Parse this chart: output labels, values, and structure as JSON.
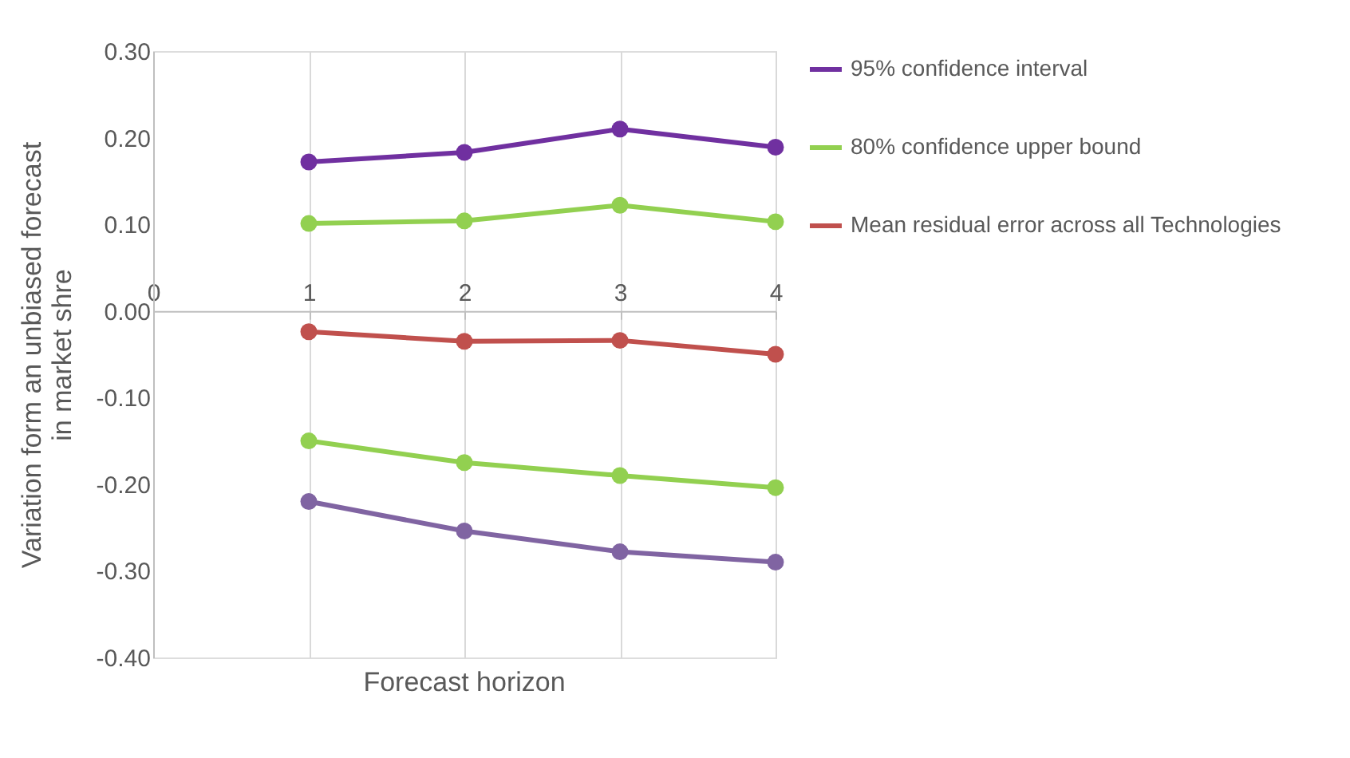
{
  "chart_data": {
    "type": "line",
    "xlabel": "Forecast horizon",
    "ylabel": "Variation form an unbiased forecast\nin market shre",
    "x": [
      1,
      2,
      3,
      4
    ],
    "xlim": [
      0,
      4
    ],
    "xticks": [
      0,
      1,
      2,
      3,
      4
    ],
    "ylim": [
      -0.4,
      0.3
    ],
    "yticks": [
      {
        "value": -0.4,
        "label": "-0.40"
      },
      {
        "value": -0.3,
        "label": "-0.30"
      },
      {
        "value": -0.2,
        "label": "-0.20"
      },
      {
        "value": -0.1,
        "label": "-0.10"
      },
      {
        "value": 0.0,
        "label": "0.00"
      },
      {
        "value": 0.1,
        "label": "0.10"
      },
      {
        "value": 0.2,
        "label": "0.20"
      },
      {
        "value": 0.3,
        "label": "0.30"
      }
    ],
    "grid": "x",
    "legend": "right",
    "marker": "circle",
    "line_style": "solid",
    "series": [
      {
        "name": "95% confidence interval",
        "color": "#7030a0",
        "values": [
          0.172,
          0.183,
          0.21,
          0.189
        ]
      },
      {
        "name": "80% confidence upper bound",
        "color": "#92d050",
        "values": [
          0.101,
          0.104,
          0.122,
          0.103
        ]
      },
      {
        "name": "Mean residual error across all Technologies",
        "color": "#c0504d",
        "values": [
          -0.024,
          -0.035,
          -0.034,
          -0.05
        ]
      },
      {
        "color": "#92d050",
        "values": [
          -0.15,
          -0.175,
          -0.19,
          -0.204
        ]
      },
      {
        "color": "#8064a2",
        "values": [
          -0.22,
          -0.254,
          -0.278,
          -0.29
        ]
      }
    ]
  }
}
